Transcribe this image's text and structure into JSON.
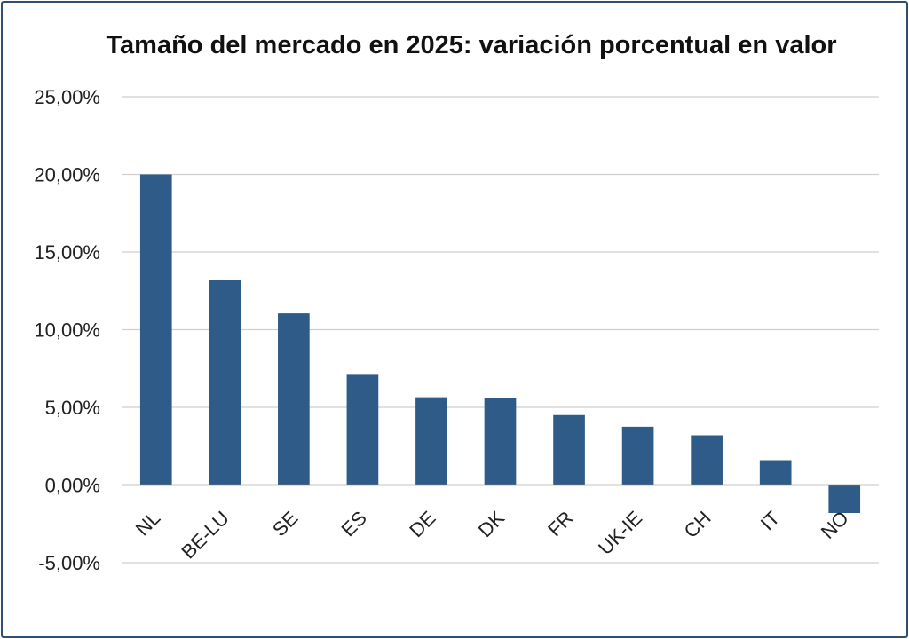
{
  "chart_data": {
    "type": "bar",
    "title": "Tamaño del mercado en 2025: variación porcentual en valor",
    "xlabel": "",
    "ylabel": "",
    "categories": [
      "NL",
      "BE-LU",
      "SE",
      "ES",
      "DE",
      "DK",
      "FR",
      "UK-IE",
      "CH",
      "IT",
      "NO"
    ],
    "values": [
      20.0,
      13.2,
      11.05,
      7.15,
      5.65,
      5.6,
      4.5,
      3.75,
      3.2,
      1.6,
      -1.8
    ],
    "ylim": [
      -5,
      25
    ],
    "yticks": [
      25,
      20,
      15,
      10,
      5,
      0,
      -5
    ],
    "ytick_labels": [
      "25,00%",
      "20,00%",
      "15,00%",
      "10,00%",
      "5,00%",
      "0,00%",
      "-5,00%"
    ],
    "grid": true,
    "legend": "none",
    "bar_color": "#2e5b88",
    "grid_color": "#cfcfcf",
    "axis_color": "#888888"
  }
}
